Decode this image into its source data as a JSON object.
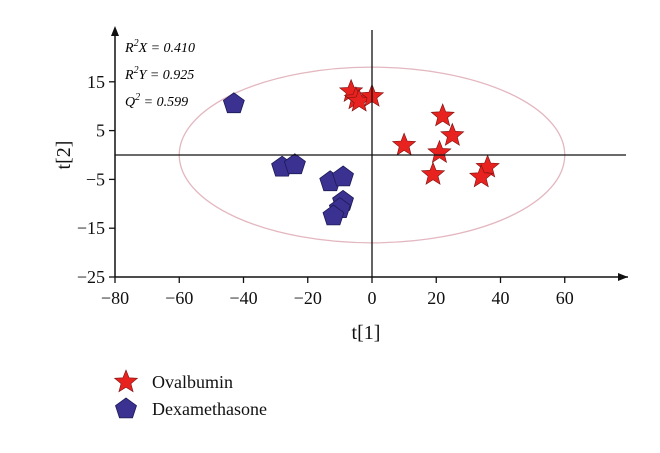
{
  "chart_data": {
    "type": "scatter",
    "xlabel": "t[1]",
    "ylabel": "t[2]",
    "xlim": [
      -80,
      80
    ],
    "ylim": [
      -25,
      25
    ],
    "xticks": [
      -80,
      -60,
      -40,
      -20,
      0,
      20,
      40,
      60
    ],
    "yticks": [
      -25,
      -15,
      -5,
      5,
      15
    ],
    "grid": false,
    "legend_position": "bottom-left",
    "stats": [
      {
        "symbol": "R",
        "sup": "2",
        "sub_var": "X",
        "value": "0.410"
      },
      {
        "symbol": "R",
        "sup": "2",
        "sub_var": "Y",
        "value": "0.925"
      },
      {
        "symbol": "Q",
        "sup": "2",
        "sub_var": "",
        "value": "0.599"
      }
    ],
    "ellipse": {
      "center": [
        0,
        0
      ],
      "radii": [
        60,
        18
      ],
      "color": "#e3b7c0"
    },
    "series": [
      {
        "name": "Ovalbumin",
        "marker": "star",
        "color": "#e8231f",
        "points": [
          [
            -6.5,
            13
          ],
          [
            -5,
            11.5
          ],
          [
            -4,
            11
          ],
          [
            0,
            12
          ],
          [
            22,
            8
          ],
          [
            25,
            4
          ],
          [
            10,
            2
          ],
          [
            21,
            0.5
          ],
          [
            19,
            -4
          ],
          [
            36,
            -2.5
          ],
          [
            34,
            -4.5
          ]
        ]
      },
      {
        "name": "Dexamethasone",
        "marker": "pentagon",
        "color": "#3a3191",
        "points": [
          [
            -43,
            10.5
          ],
          [
            -28,
            -2.5
          ],
          [
            -24,
            -2
          ],
          [
            -13,
            -5.5
          ],
          [
            -9,
            -4.5
          ],
          [
            -9,
            -9.5
          ],
          [
            -10,
            -11
          ],
          [
            -12,
            -12.5
          ]
        ]
      }
    ]
  }
}
